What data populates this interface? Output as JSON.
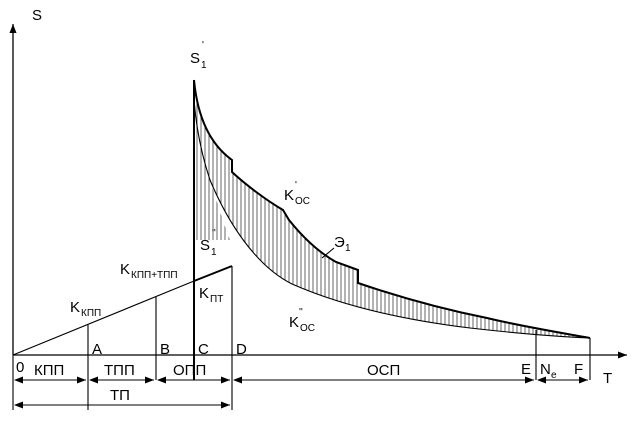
{
  "axes": {
    "y_label": "S",
    "x_label": "T"
  },
  "points": {
    "origin": "0",
    "a": "A",
    "b": "B",
    "c": "C",
    "d": "D",
    "e": "E",
    "f": "F"
  },
  "peaks": {
    "s1_prime": "S",
    "s1_prime_sub": "1",
    "s1_prime_mark": "'",
    "s1_dprime": "S",
    "s1_dprime_sub": "1",
    "s1_dprime_mark": "''"
  },
  "curves": {
    "k_kpp": {
      "main": "K",
      "sub": "КПП"
    },
    "k_kpp_tpp": {
      "main": "K",
      "sub": "КПП+ТПП"
    },
    "k_pt": {
      "main": "K",
      "sub": "ПТ"
    },
    "k_os_prime": {
      "main": "K",
      "mark": "'",
      "sub": "ОС"
    },
    "k_os_dprime": {
      "main": "K",
      "mark": "''",
      "sub": "ОС"
    },
    "e1": {
      "main": "Э",
      "sub": "1"
    }
  },
  "intervals": {
    "kpp": "КПП",
    "tpp": "ТПП",
    "opp": "ОПП",
    "osp": "ОСП",
    "ne_main": "N",
    "ne_sub": "e",
    "tp": "ТП"
  }
}
